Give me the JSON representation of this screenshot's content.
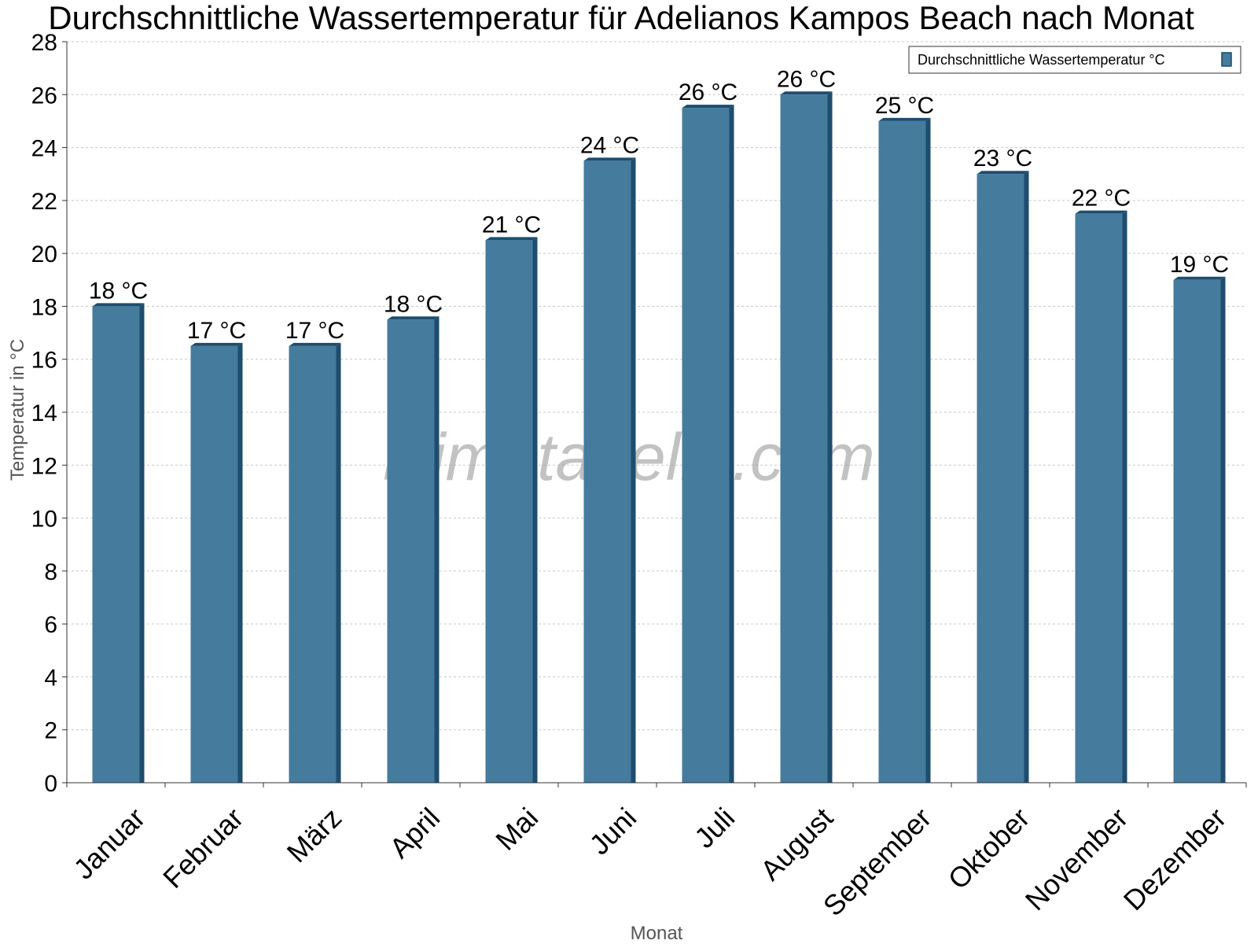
{
  "chart_data": {
    "type": "bar",
    "title": "Durchschnittliche Wassertemperatur für Adelianos Kampos Beach nach Monat",
    "xlabel": "Monat",
    "ylabel": "Temperatur in °C",
    "ylim": [
      0,
      28
    ],
    "yticks": [
      0,
      2,
      4,
      6,
      8,
      10,
      12,
      14,
      16,
      18,
      20,
      22,
      24,
      26,
      28
    ],
    "categories": [
      "Januar",
      "Februar",
      "März",
      "April",
      "Mai",
      "Juni",
      "Juli",
      "August",
      "September",
      "Oktober",
      "November",
      "Dezember"
    ],
    "series": [
      {
        "name": "Durchschnittliche Wassertemperatur °C",
        "color": "#457b9d",
        "values": [
          18,
          16.5,
          16.5,
          17.5,
          20.5,
          23.5,
          25.5,
          26,
          25,
          23,
          21.5,
          19
        ],
        "labels": [
          "18 °C",
          "17 °C",
          "17 °C",
          "18 °C",
          "21 °C",
          "24 °C",
          "26 °C",
          "26 °C",
          "25 °C",
          "23 °C",
          "22 °C",
          "19 °C"
        ]
      }
    ],
    "legend": "top-right",
    "grid": true
  },
  "watermark": "klimatabelle.com"
}
